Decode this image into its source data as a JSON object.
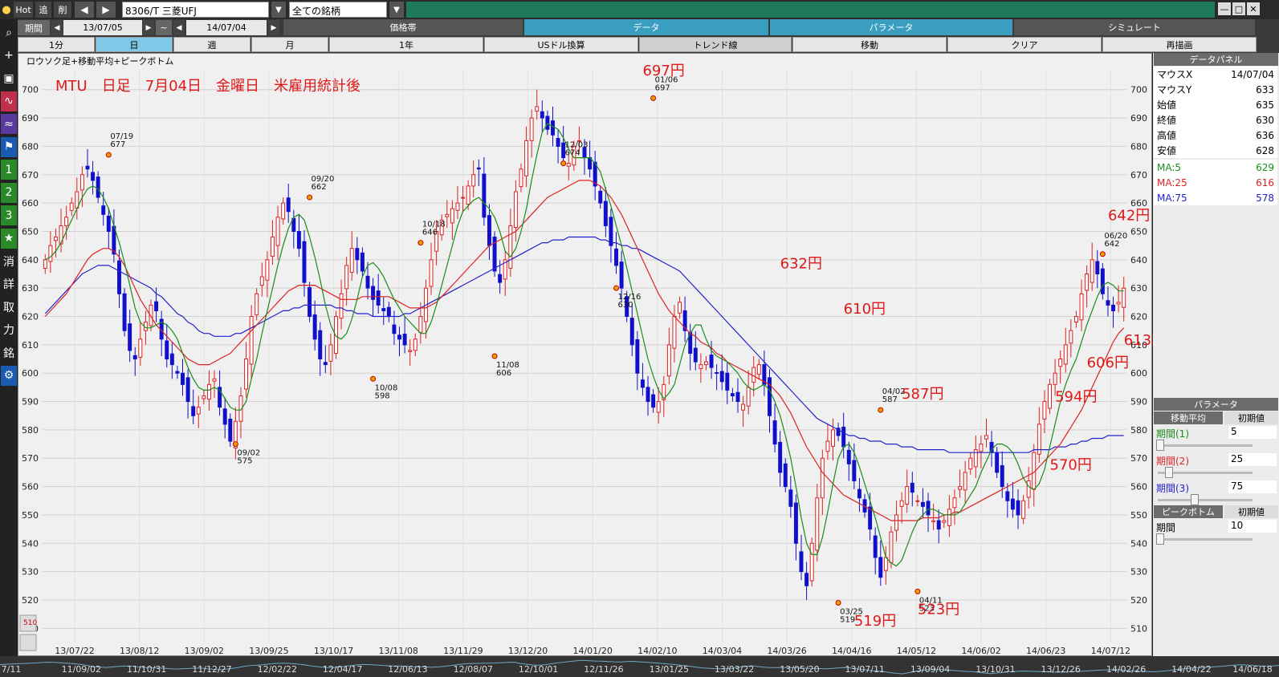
{
  "toolbar": {
    "hot": "Hot",
    "add": "追",
    "del": "削",
    "symbol": "8306/T 三菱UFJ",
    "universe": "全ての銘柄"
  },
  "period": {
    "label": "期間",
    "from": "13/07/05",
    "tilde": "~",
    "to": "14/07/04"
  },
  "tabs_top": [
    {
      "label": "価格帯"
    },
    {
      "label": "データ"
    },
    {
      "label": "パラメータ"
    },
    {
      "label": "シミュレート"
    }
  ],
  "tabs_sub": [
    {
      "label": "1分"
    },
    {
      "label": "日"
    },
    {
      "label": "週"
    },
    {
      "label": "月"
    },
    {
      "label": "1年"
    },
    {
      "label": "USドル換算"
    },
    {
      "label": "トレンド線"
    },
    {
      "label": "移動"
    },
    {
      "label": "クリア"
    },
    {
      "label": "再描画"
    }
  ],
  "left_tools": [
    "search-icon",
    "plus-icon",
    "camera-icon",
    "line-chart-icon",
    "wave-icon",
    "flag-icon",
    "1",
    "2",
    "3",
    "star-icon",
    "消",
    "詳",
    "取",
    "力",
    "銘",
    "gear-icon"
  ],
  "data_panel": {
    "title": "データパネル",
    "rows": [
      {
        "label": "マウスX",
        "value": "14/07/04"
      },
      {
        "label": "マウスY",
        "value": "633"
      },
      {
        "label": "始値",
        "value": "635"
      },
      {
        "label": "終値",
        "value": "630"
      },
      {
        "label": "高値",
        "value": "636"
      },
      {
        "label": "安値",
        "value": "628"
      },
      {
        "label": "MA:5",
        "value": "629"
      },
      {
        "label": "MA:25",
        "value": "616"
      },
      {
        "label": "MA:75",
        "value": "578"
      }
    ]
  },
  "param_panel": {
    "title": "パラメータ",
    "ma_header": "移動平均",
    "ma_reset": "初期値",
    "periods": [
      {
        "label": "期間(1)",
        "value": "5",
        "level": 0
      },
      {
        "label": "期間(2)",
        "value": "25",
        "level": 0.1
      },
      {
        "label": "期間(3)",
        "value": "75",
        "level": 0.4
      }
    ],
    "pb_header": "ピークボトム",
    "pb_reset": "初期値",
    "pb_period": {
      "label": "期間",
      "value": "10",
      "level": 0
    }
  },
  "colors": {
    "ma5": "#1a8c1a",
    "ma25": "#dd2222",
    "ma75": "#2222cc",
    "up": "#dd2222",
    "down": "#1010cc",
    "annot": "#e01818"
  },
  "chart_data": {
    "type": "candlestick",
    "title": "ロウソク足+移動平均+ピークボトム",
    "annotation_title": "MTU　日足　7月04日　金曜日　米雇用統計後",
    "ylim": [
      505,
      707
    ],
    "yticks": [
      510,
      520,
      530,
      540,
      550,
      560,
      570,
      580,
      590,
      600,
      610,
      620,
      630,
      640,
      650,
      660,
      670,
      680,
      690,
      700
    ],
    "xticks": [
      "13/07/22",
      "13/08/12",
      "13/09/02",
      "13/09/25",
      "13/10/17",
      "13/11/08",
      "13/11/29",
      "13/12/20",
      "14/01/20",
      "14/02/10",
      "14/03/04",
      "14/03/26",
      "14/04/16",
      "14/05/12",
      "14/06/02",
      "14/06/23",
      "14/07/12"
    ],
    "bottom_ticks": [
      "7/11",
      "11/09/02",
      "11/10/31",
      "11/12/27",
      "12/02/22",
      "12/04/17",
      "12/06/13",
      "12/08/07",
      "12/10/01",
      "12/11/26",
      "13/01/25",
      "13/03/22",
      "13/05/20",
      "13/07/11",
      "13/09/04",
      "13/10/31",
      "13/12/26",
      "14/02/26",
      "14/04/22",
      "14/06/18"
    ],
    "series_close": [
      640,
      645,
      648,
      652,
      655,
      660,
      664,
      670,
      672,
      668,
      662,
      656,
      650,
      642,
      628,
      615,
      608,
      605,
      612,
      618,
      624,
      622,
      612,
      605,
      603,
      600,
      596,
      590,
      585,
      588,
      592,
      596,
      598,
      588,
      582,
      576,
      583,
      592,
      605,
      620,
      628,
      634,
      640,
      648,
      655,
      660,
      657,
      650,
      644,
      632,
      620,
      612,
      605,
      603,
      610,
      620,
      628,
      638,
      644,
      640,
      636,
      630,
      626,
      624,
      622,
      620,
      614,
      612,
      610,
      608,
      612,
      620,
      630,
      640,
      650,
      654,
      656,
      658,
      660,
      662,
      666,
      670,
      672,
      655,
      645,
      636,
      632,
      640,
      652,
      664,
      672,
      682,
      690,
      694,
      690,
      686,
      684,
      680,
      676,
      674,
      680,
      682,
      676,
      672,
      666,
      660,
      652,
      645,
      638,
      630,
      620,
      610,
      600,
      595,
      590,
      588,
      590,
      596,
      610,
      620,
      625,
      615,
      607,
      604,
      603,
      604,
      602,
      600,
      597,
      594,
      592,
      590,
      589,
      595,
      602,
      603,
      596,
      585,
      575,
      565,
      560,
      553,
      540,
      530,
      525,
      540,
      556,
      570,
      576,
      580,
      578,
      574,
      568,
      562,
      556,
      551,
      545,
      535,
      528,
      535,
      544,
      550,
      555,
      560,
      558,
      555,
      553,
      550,
      548,
      545,
      548,
      552,
      556,
      560,
      565,
      570,
      573,
      575,
      578,
      572,
      565,
      560,
      555,
      552,
      550,
      555,
      562,
      572,
      582,
      590,
      596,
      600,
      605,
      610,
      615,
      620,
      628,
      635,
      640,
      635,
      628,
      624,
      622,
      625,
      630
    ],
    "ma5": [
      640,
      641,
      643,
      646,
      650,
      654,
      658,
      662,
      665,
      666,
      665,
      662,
      658,
      652,
      646,
      639,
      631,
      623,
      618,
      616,
      616,
      617,
      618,
      617,
      615,
      612,
      607,
      602,
      598,
      595,
      594,
      594,
      595,
      594,
      591,
      588,
      587,
      587,
      590,
      598,
      605,
      614,
      622,
      630,
      638,
      645,
      651,
      655,
      656,
      654,
      648,
      641,
      633,
      624,
      617,
      613,
      612,
      614,
      619,
      626,
      634,
      638,
      639,
      637,
      634,
      630,
      626,
      623,
      620,
      618,
      616,
      614,
      614,
      618,
      624,
      631,
      638,
      645,
      652,
      657,
      659,
      661,
      662,
      660,
      658,
      655,
      650,
      643,
      641,
      644,
      650,
      658,
      668,
      677,
      685,
      688,
      687,
      686,
      683,
      679,
      676,
      676,
      676,
      676,
      674,
      671,
      665,
      659,
      652,
      645,
      637,
      629,
      621,
      613,
      605,
      599,
      594,
      591,
      593,
      596,
      603,
      610,
      614,
      617,
      617,
      612,
      608,
      606,
      605,
      604,
      602,
      600,
      597,
      595,
      594,
      595,
      596,
      594,
      590,
      585,
      578,
      570,
      560,
      549,
      540,
      536,
      536,
      542,
      551,
      561,
      570,
      574,
      575,
      572,
      567,
      561,
      555,
      549,
      542,
      535,
      533,
      532,
      534,
      539,
      544,
      548,
      550,
      552,
      552,
      551,
      550,
      550,
      550,
      551,
      554,
      557,
      560,
      565,
      569,
      573,
      575,
      575,
      574,
      572,
      568,
      563,
      560,
      559,
      561,
      566,
      574,
      582,
      590,
      596,
      601,
      605,
      611,
      617,
      622,
      627,
      631,
      632,
      631,
      629,
      629
    ],
    "ma25": [
      620,
      622,
      624,
      626,
      628,
      631,
      634,
      637,
      640,
      642,
      643,
      644,
      644,
      643,
      641,
      638,
      634,
      630,
      626,
      623,
      620,
      617,
      615,
      613,
      611,
      609,
      607,
      605,
      604,
      603,
      603,
      603,
      604,
      605,
      606,
      607,
      609,
      611,
      613,
      615,
      617,
      619,
      621,
      623,
      625,
      627,
      629,
      630,
      631,
      631,
      631,
      631,
      630,
      629,
      628,
      627,
      626,
      626,
      626,
      626,
      627,
      627,
      627,
      627,
      627,
      627,
      626,
      625,
      624,
      623,
      623,
      623,
      623,
      624,
      625,
      627,
      629,
      631,
      633,
      635,
      637,
      639,
      641,
      643,
      645,
      646,
      647,
      648,
      649,
      650,
      652,
      654,
      656,
      658,
      660,
      662,
      663,
      664,
      665,
      666,
      667,
      668,
      668,
      668,
      667,
      666,
      664,
      662,
      659,
      656,
      652,
      648,
      644,
      640,
      636,
      632,
      628,
      625,
      622,
      620,
      618,
      616,
      614,
      613,
      611,
      610,
      609,
      607,
      606,
      604,
      603,
      602,
      601,
      600,
      599,
      598,
      597,
      596,
      594,
      592,
      589,
      586,
      582,
      578,
      574,
      571,
      568,
      565,
      563,
      561,
      559,
      557,
      556,
      555,
      554,
      553,
      552,
      551,
      550,
      549,
      548,
      548,
      548,
      548,
      548,
      548,
      549,
      549,
      549,
      549,
      550,
      550,
      551,
      551,
      552,
      553,
      554,
      555,
      556,
      557,
      558,
      559,
      560,
      561,
      562,
      563,
      564,
      565,
      567,
      569,
      571,
      573,
      575,
      578,
      581,
      584,
      587,
      591,
      595,
      599,
      603,
      607,
      611,
      614,
      616
    ],
    "ma75": [
      621,
      623,
      625,
      627,
      629,
      631,
      633,
      635,
      636,
      637,
      638,
      638,
      638,
      637,
      636,
      635,
      634,
      633,
      632,
      631,
      630,
      628,
      627,
      625,
      623,
      621,
      620,
      618,
      617,
      615,
      614,
      614,
      613,
      613,
      613,
      613,
      614,
      614,
      615,
      616,
      617,
      618,
      619,
      620,
      621,
      622,
      622,
      623,
      623,
      624,
      624,
      624,
      624,
      624,
      624,
      623,
      623,
      622,
      622,
      621,
      621,
      621,
      620,
      620,
      620,
      620,
      620,
      620,
      621,
      621,
      622,
      623,
      624,
      625,
      626,
      627,
      628,
      629,
      630,
      631,
      632,
      633,
      634,
      635,
      636,
      637,
      638,
      639,
      640,
      641,
      642,
      643,
      644,
      645,
      646,
      646,
      647,
      647,
      647,
      648,
      648,
      648,
      648,
      648,
      648,
      647,
      647,
      646,
      646,
      645,
      645,
      644,
      644,
      643,
      642,
      641,
      640,
      639,
      638,
      637,
      636,
      634,
      632,
      630,
      628,
      626,
      624,
      622,
      620,
      618,
      616,
      614,
      612,
      610,
      608,
      606,
      604,
      602,
      600,
      598,
      596,
      594,
      592,
      590,
      588,
      586,
      584,
      583,
      582,
      581,
      580,
      579,
      578,
      578,
      577,
      577,
      576,
      576,
      576,
      575,
      575,
      575,
      574,
      574,
      574,
      573,
      573,
      573,
      573,
      573,
      573,
      572,
      572,
      572,
      572,
      572,
      572,
      572,
      572,
      572,
      572,
      572,
      572,
      572,
      572,
      572,
      572,
      573,
      573,
      573,
      573,
      574,
      574,
      574,
      575,
      575,
      576,
      576,
      577,
      577,
      577,
      578,
      578,
      578,
      578
    ],
    "peaks": [
      {
        "idx": 12,
        "date": "07/19",
        "price": "677",
        "value": 677,
        "pos": "top"
      },
      {
        "idx": 36,
        "date": "09/02",
        "price": "575",
        "value": 575,
        "pos": "bottom"
      },
      {
        "idx": 50,
        "date": "09/20",
        "price": "662",
        "value": 662,
        "pos": "top"
      },
      {
        "idx": 62,
        "date": "10/08",
        "price": "598",
        "value": 598,
        "pos": "bottom"
      },
      {
        "idx": 71,
        "date": "10/18",
        "price": "646",
        "value": 646,
        "pos": "top"
      },
      {
        "idx": 85,
        "date": "11/08",
        "price": "606",
        "value": 606,
        "pos": "bottom"
      },
      {
        "idx": 98,
        "date": "12/03",
        "price": "674",
        "value": 674,
        "pos": "top"
      },
      {
        "idx": 108,
        "date": "12/16",
        "price": "630",
        "value": 630,
        "pos": "bottom"
      },
      {
        "idx": 115,
        "date": "01/06",
        "price": "697",
        "value": 697,
        "pos": "top"
      },
      {
        "idx": 150,
        "date": "03/25",
        "price": "519",
        "value": 519,
        "pos": "bottom"
      },
      {
        "idx": 158,
        "date": "04/02",
        "price": "587",
        "value": 587,
        "pos": "top"
      },
      {
        "idx": 165,
        "date": "04/11",
        "price": "523",
        "value": 523,
        "pos": "bottom"
      },
      {
        "idx": 200,
        "date": "06/20",
        "price": "642",
        "value": 642,
        "pos": "top"
      }
    ],
    "annotations": [
      {
        "text": "697円",
        "idx": 113,
        "value": 705
      },
      {
        "text": "632円",
        "idx": 139,
        "value": 637
      },
      {
        "text": "610円",
        "idx": 151,
        "value": 621
      },
      {
        "text": "587円",
        "idx": 162,
        "value": 591
      },
      {
        "text": "519円",
        "idx": 153,
        "value": 511
      },
      {
        "text": "523円",
        "idx": 165,
        "value": 515
      },
      {
        "text": "642円",
        "idx": 201,
        "value": 654
      },
      {
        "text": "613円",
        "idx": 204,
        "value": 610
      },
      {
        "text": "606円",
        "idx": 197,
        "value": 602
      },
      {
        "text": "594円",
        "idx": 191,
        "value": 590
      },
      {
        "text": "570円",
        "idx": 190,
        "value": 566
      }
    ],
    "right_axis_label": "510"
  }
}
